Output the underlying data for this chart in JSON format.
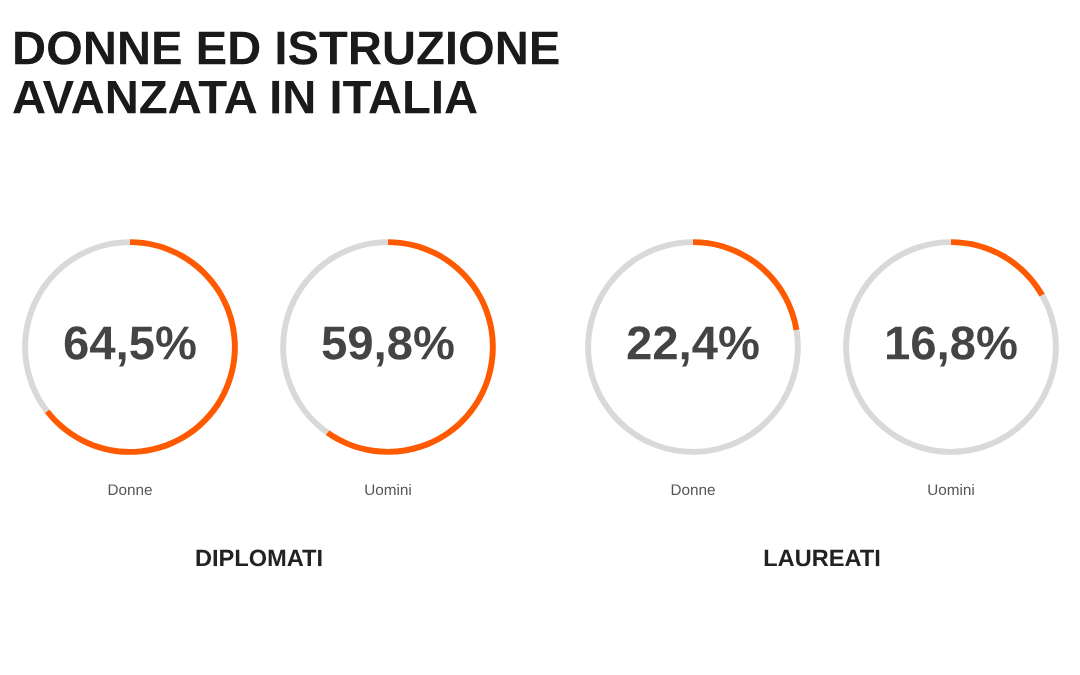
{
  "chart_data": [
    {
      "type": "donut",
      "title": "DONNE ED ISTRUZIONE AVANZATA IN ITALIA",
      "xlabel": "Donne",
      "annotations": [
        "DIPLOMATI"
      ],
      "categories": [
        null,
        null
      ],
      "values": [
        64.5,
        35.5
      ],
      "value_labels": [
        "64,5%",
        null
      ],
      "colors": [
        "#ff5a00",
        "#d9d9d9"
      ]
    },
    {
      "type": "donut",
      "xlabel": "Uomini",
      "categories": [
        null,
        null
      ],
      "values": [
        59.8,
        40.2
      ],
      "value_labels": [
        "59,8%",
        null
      ],
      "colors": [
        "#ff5a00",
        "#d9d9d9"
      ]
    },
    {
      "type": "donut",
      "xlabel": "Donne",
      "annotations": [
        "LAUREATI"
      ],
      "categories": [
        null,
        null
      ],
      "values": [
        22.4,
        77.6
      ],
      "value_labels": [
        "22,4%",
        null
      ],
      "colors": [
        "#ff5a00",
        "#d9d9d9"
      ]
    },
    {
      "type": "donut",
      "xlabel": "Uomini",
      "categories": [
        null,
        null
      ],
      "values": [
        16.8,
        83.2
      ],
      "value_labels": [
        "16,8%",
        null
      ],
      "colors": [
        "#ff5a00",
        "#d9d9d9"
      ]
    }
  ]
}
